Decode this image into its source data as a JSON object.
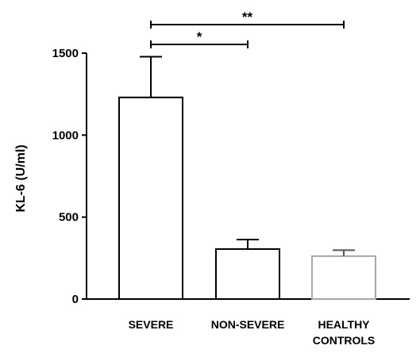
{
  "chart_data": {
    "type": "bar",
    "categories": [
      "SEVERE",
      "NON-SEVERE",
      "HEALTHY CONTROLS"
    ],
    "category_lines": [
      [
        "SEVERE"
      ],
      [
        "NON-SEVERE"
      ],
      [
        "HEALTHY",
        "CONTROLS"
      ]
    ],
    "values": [
      1230,
      305,
      262
    ],
    "error_upper": [
      1478,
      363,
      298
    ],
    "ylabel": "KL-6 (U/ml)",
    "ylim": [
      0,
      1500
    ],
    "yticks": [
      0,
      500,
      1000,
      1500
    ],
    "ytick_labels": [
      "0",
      "500",
      "1000",
      "1500"
    ],
    "grid": false,
    "bar_colors": [
      "#ffffff",
      "#ffffff",
      "#ffffff"
    ],
    "bar_edge_colors": [
      "#000000",
      "#000000",
      "#a8a8a8"
    ],
    "significance": [
      {
        "from": 0,
        "to": 1,
        "label": "*"
      },
      {
        "from": 0,
        "to": 2,
        "label": "**"
      }
    ]
  }
}
